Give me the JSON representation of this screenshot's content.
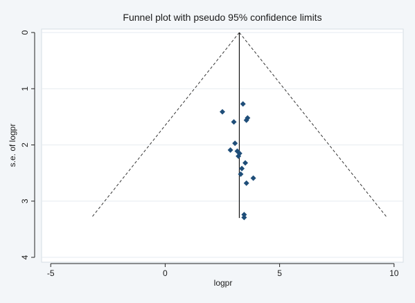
{
  "chart_data": {
    "type": "scatter",
    "title": "Funnel plot with pseudo 95% confidence limits",
    "xlabel": "logpr",
    "ylabel": "s.e. of logpr",
    "xlim": [
      -5.4,
      10.4
    ],
    "ylim": [
      0,
      4.1
    ],
    "y_inverted": true,
    "x_ticks": [
      -5,
      0,
      5,
      10
    ],
    "y_ticks": [
      0,
      1,
      2,
      3,
      4
    ],
    "grid": "horizontal",
    "marker": "diamond",
    "marker_color": "#1f4e79",
    "effect_line_x": 3.24,
    "effect_line_y": [
      0,
      3.3
    ],
    "funnel_limits": {
      "apex": [
        3.24,
        0
      ],
      "lower_left": [
        -3.23,
        3.3
      ],
      "lower_right": [
        9.71,
        3.3
      ]
    },
    "points": [
      {
        "x": 2.5,
        "y": 1.41
      },
      {
        "x": 3.4,
        "y": 1.27
      },
      {
        "x": 3.0,
        "y": 1.59
      },
      {
        "x": 3.6,
        "y": 1.52
      },
      {
        "x": 3.55,
        "y": 1.56
      },
      {
        "x": 3.05,
        "y": 1.97
      },
      {
        "x": 2.85,
        "y": 2.09
      },
      {
        "x": 3.15,
        "y": 2.11
      },
      {
        "x": 3.25,
        "y": 2.15
      },
      {
        "x": 3.2,
        "y": 2.2
      },
      {
        "x": 3.5,
        "y": 2.32
      },
      {
        "x": 3.35,
        "y": 2.42
      },
      {
        "x": 3.3,
        "y": 2.52
      },
      {
        "x": 3.85,
        "y": 2.59
      },
      {
        "x": 3.55,
        "y": 2.68
      },
      {
        "x": 3.45,
        "y": 3.24
      },
      {
        "x": 3.45,
        "y": 3.29
      }
    ]
  }
}
